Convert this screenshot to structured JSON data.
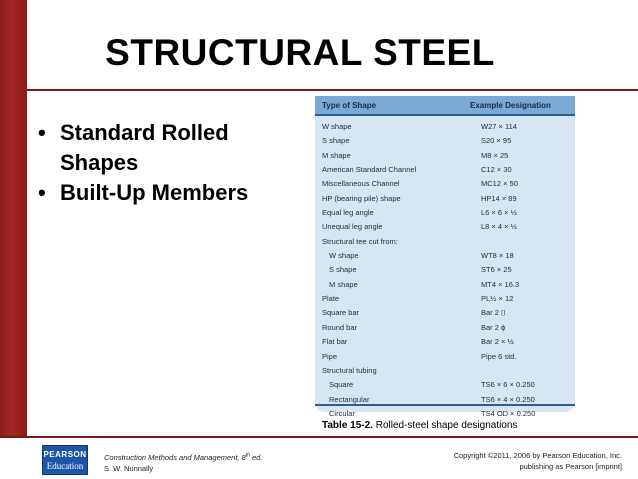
{
  "slide": {
    "title": "STRUCTURAL STEEL",
    "bullets": [
      "Standard Rolled Shapes",
      "Built-Up Members"
    ],
    "bullet_glyph": "•"
  },
  "table": {
    "headers": {
      "shape": "Type of Shape",
      "designation": "Example Designation"
    },
    "rows": [
      {
        "shape": "W shape",
        "designation": "W27 × 114",
        "indent": false
      },
      {
        "shape": "S shape",
        "designation": "S20 × 95",
        "indent": false
      },
      {
        "shape": "M shape",
        "designation": "M8 × 25",
        "indent": false
      },
      {
        "shape": "American Standard Channel",
        "designation": "C12 × 30",
        "indent": false
      },
      {
        "shape": "Miscellaneous Channel",
        "designation": "MC12 × 50",
        "indent": false
      },
      {
        "shape": "HP (bearing pile) shape",
        "designation": "HP14 × 89",
        "indent": false
      },
      {
        "shape": "Equal leg angle",
        "designation": "L6 × 6 × ½",
        "indent": false
      },
      {
        "shape": "Unequal leg angle",
        "designation": "L8 × 4 × ½",
        "indent": false
      },
      {
        "shape": "Structural tee cut from:",
        "designation": "",
        "indent": false
      },
      {
        "shape": "W shape",
        "designation": "WT8 × 18",
        "indent": true
      },
      {
        "shape": "S shape",
        "designation": "ST6 × 25",
        "indent": true
      },
      {
        "shape": "M shape",
        "designation": "MT4 × 16.3",
        "indent": true
      },
      {
        "shape": "Plate",
        "designation": "PL½ × 12",
        "indent": false
      },
      {
        "shape": "Square bar",
        "designation": "Bar 2 ⌷",
        "indent": false
      },
      {
        "shape": "Round bar",
        "designation": "Bar 2 ϕ",
        "indent": false
      },
      {
        "shape": "Flat bar",
        "designation": "Bar 2 × ½",
        "indent": false
      },
      {
        "shape": "Pipe",
        "designation": "Pipe 6 std.",
        "indent": false
      },
      {
        "shape": "Structural tubing",
        "designation": "",
        "indent": false
      },
      {
        "shape": "Square",
        "designation": "TS6 × 6 × 0.250",
        "indent": true
      },
      {
        "shape": "Rectangular",
        "designation": "TS6 × 4 × 0.250",
        "indent": true
      },
      {
        "shape": "Circular",
        "designation": "TS4 OD × 0.250",
        "indent": true
      }
    ],
    "caption_label": "Table 15-2.",
    "caption_text": " Rolled-steel shape designations"
  },
  "footer": {
    "logo_line1": "PEARSON",
    "logo_line2": "Education",
    "book_title": "Construction Methods and Management, 8",
    "book_edition_suffix": "th",
    "book_edition_end": " ed.",
    "author": "S. W. Nunnally",
    "copyright_line1": "Copyright ©2011, 2006 by Pearson Education, Inc.",
    "copyright_line2": "publishing as Pearson [imprint]"
  },
  "colors": {
    "accent": "#8e1d1b",
    "table_bg": "#d8e6f3",
    "table_header": "#7aa9d3",
    "logo_blue": "#1d56a8"
  }
}
